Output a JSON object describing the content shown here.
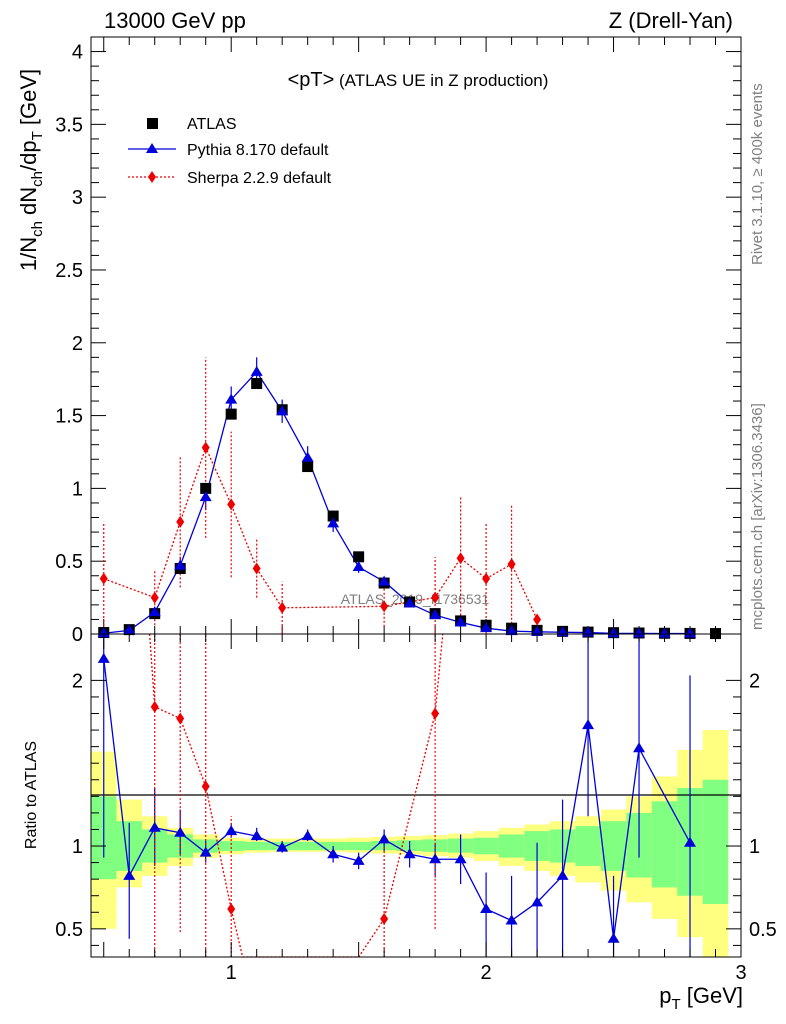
{
  "header": {
    "left": "13000 GeV pp",
    "right": "Z (Drell-Yan)"
  },
  "side_labels": {
    "rivet": "Rivet 3.1.10, ≥ 400k events",
    "mcplots": "mcplots.cern.ch [arXiv:1306.3436]"
  },
  "chart_data": [
    {
      "panel": "main",
      "type": "scatter",
      "title": "<pT> (ATLAS UE in Z production)",
      "title_main": "<pT>",
      "title_sub": " (ATLAS UE in Z production)",
      "watermark": "ATLAS_2019_I1736531",
      "xlabel": "p_T [GeV]",
      "ylabel": "1/N_ch dN_ch/dp_T [GeV]",
      "xlim": [
        0.45,
        3.0
      ],
      "ylim": [
        0,
        4.1
      ],
      "yticks": [
        0,
        0.5,
        1,
        1.5,
        2,
        2.5,
        3,
        3.5,
        4
      ],
      "ytick_labels": [
        "0",
        "0.5",
        "1",
        "1.5",
        "2",
        "2.5",
        "3",
        "3.5",
        "4"
      ],
      "legend_position": "top-left",
      "series": [
        {
          "name": "ATLAS",
          "marker": "square",
          "color": "#000000",
          "x": [
            0.5,
            0.6,
            0.7,
            0.8,
            0.9,
            1.0,
            1.1,
            1.2,
            1.3,
            1.4,
            1.5,
            1.6,
            1.7,
            1.8,
            1.9,
            2.0,
            2.1,
            2.2,
            2.3,
            2.4,
            2.5,
            2.6,
            2.7,
            2.8,
            2.9
          ],
          "y": [
            0.01,
            0.03,
            0.14,
            0.45,
            1.0,
            1.51,
            1.72,
            1.54,
            1.15,
            0.81,
            0.53,
            0.35,
            0.22,
            0.14,
            0.09,
            0.06,
            0.04,
            0.025,
            0.018,
            0.013,
            0.009,
            0.007,
            0.005,
            0.004,
            0.003
          ]
        },
        {
          "name": "Pythia 8.170 default",
          "marker": "triangle",
          "line": "solid",
          "color": "#0000dd",
          "x": [
            0.5,
            0.6,
            0.7,
            0.8,
            0.9,
            1.0,
            1.1,
            1.2,
            1.3,
            1.4,
            1.5,
            1.6,
            1.7,
            1.8,
            1.9,
            2.0,
            2.1,
            2.2,
            2.3,
            2.4,
            2.5,
            2.6,
            2.7,
            2.8
          ],
          "y": [
            0.005,
            0.025,
            0.15,
            0.47,
            0.94,
            1.61,
            1.8,
            1.53,
            1.21,
            0.76,
            0.46,
            0.36,
            0.21,
            0.13,
            0.08,
            0.04,
            0.02,
            0.015,
            0.012,
            0.01,
            0.004,
            0.004,
            0.003,
            0.003
          ],
          "yerr": [
            0.003,
            0.008,
            0.03,
            0.06,
            0.09,
            0.09,
            0.1,
            0.08,
            0.08,
            0.06,
            0.04,
            0.03,
            0.02,
            0.015,
            0.01,
            0.008,
            0.006,
            0.005,
            0.004,
            0.004,
            0.003,
            0.003,
            0.003,
            0.003
          ]
        },
        {
          "name": "Sherpa 2.2.9 default",
          "marker": "diamond",
          "line": "dotted",
          "color": "#ee0000",
          "x": [
            0.5,
            0.7,
            0.8,
            0.9,
            1.0,
            1.1,
            1.2,
            1.6,
            1.8,
            1.9,
            2.0,
            2.1,
            2.2
          ],
          "y": [
            0.38,
            0.25,
            0.77,
            1.28,
            0.89,
            0.45,
            0.18,
            0.19,
            0.25,
            0.52,
            0.38,
            0.48,
            0.1
          ],
          "yerr": [
            0.39,
            0.19,
            0.45,
            0.62,
            0.5,
            0.2,
            0.18,
            0.14,
            0.28,
            0.42,
            0.38,
            0.41,
            0.04
          ]
        }
      ]
    },
    {
      "panel": "ratio",
      "type": "scatter",
      "ylabel": "Ratio to ATLAS",
      "xlabel": "p_T [GeV]",
      "xlim": [
        0.45,
        3.0
      ],
      "ylim": [
        0.33,
        2.28
      ],
      "yticks": [
        0.5,
        1,
        2
      ],
      "ytick_labels": [
        "0.5",
        "1",
        "2"
      ],
      "xticks": [
        1,
        2,
        3
      ],
      "xtick_labels": [
        "1",
        "2",
        "3"
      ],
      "reference_line": 1,
      "bands": {
        "edges": [
          0.45,
          0.55,
          0.65,
          0.75,
          0.85,
          0.95,
          1.05,
          1.15,
          1.25,
          1.35,
          1.45,
          1.55,
          1.65,
          1.75,
          1.85,
          1.95,
          2.05,
          2.15,
          2.25,
          2.35,
          2.45,
          2.55,
          2.65,
          2.75,
          2.85,
          2.95
        ],
        "outer_color": "#ffff80",
        "inner_color": "#80ff80",
        "outer_lo": [
          0.5,
          0.75,
          0.82,
          0.88,
          0.93,
          0.95,
          0.96,
          0.965,
          0.965,
          0.965,
          0.96,
          0.955,
          0.95,
          0.94,
          0.93,
          0.91,
          0.88,
          0.85,
          0.82,
          0.78,
          0.73,
          0.66,
          0.56,
          0.45,
          0.33
        ],
        "outer_hi": [
          1.57,
          1.28,
          1.18,
          1.11,
          1.07,
          1.05,
          1.045,
          1.045,
          1.045,
          1.045,
          1.05,
          1.055,
          1.06,
          1.065,
          1.075,
          1.09,
          1.11,
          1.13,
          1.15,
          1.18,
          1.22,
          1.3,
          1.42,
          1.58,
          1.7
        ],
        "inner_lo": [
          0.8,
          0.85,
          0.9,
          0.93,
          0.96,
          0.97,
          0.975,
          0.975,
          0.975,
          0.975,
          0.975,
          0.975,
          0.97,
          0.965,
          0.96,
          0.95,
          0.93,
          0.91,
          0.9,
          0.88,
          0.85,
          0.81,
          0.75,
          0.7,
          0.65
        ],
        "inner_hi": [
          1.3,
          1.15,
          1.1,
          1.07,
          1.04,
          1.03,
          1.025,
          1.025,
          1.025,
          1.025,
          1.025,
          1.03,
          1.035,
          1.04,
          1.045,
          1.05,
          1.07,
          1.09,
          1.1,
          1.12,
          1.15,
          1.2,
          1.27,
          1.35,
          1.4
        ]
      },
      "series": [
        {
          "name": "Pythia 8.170 default",
          "color": "#0000dd",
          "x": [
            0.5,
            0.6,
            0.7,
            0.8,
            0.9,
            1.0,
            1.1,
            1.2,
            1.3,
            1.4,
            1.5,
            1.6,
            1.7,
            1.8,
            1.9,
            2.0,
            2.1,
            2.2,
            2.3,
            2.4,
            2.5,
            2.6,
            2.8
          ],
          "y": [
            2.13,
            0.82,
            1.11,
            1.08,
            0.96,
            1.09,
            1.06,
            0.99,
            1.06,
            0.95,
            0.91,
            1.04,
            0.95,
            0.92,
            0.92,
            0.62,
            0.55,
            0.66,
            0.82,
            1.73,
            0.44,
            1.59,
            1.02
          ],
          "ylo": [
            0.93,
            0.44,
            0.88,
            0.95,
            0.9,
            1.05,
            1.03,
            0.96,
            1.03,
            0.9,
            0.86,
            0.97,
            0.87,
            0.81,
            0.77,
            0.28,
            0.26,
            0.28,
            0.33,
            1.18,
            0.33,
            0.93,
            0.33
          ],
          "yhi": [
            2.28,
            1.14,
            1.35,
            1.22,
            1.03,
            1.14,
            1.11,
            1.03,
            1.1,
            1.0,
            0.96,
            1.1,
            1.03,
            1.02,
            1.07,
            0.84,
            0.82,
            1.02,
            1.28,
            2.28,
            0.82,
            2.28,
            2.03
          ]
        },
        {
          "name": "Sherpa 2.2.9 default",
          "color": "#ee0000",
          "x": [
            0.7,
            0.8,
            0.9,
            1.0,
            1.6,
            1.8
          ],
          "y": [
            1.84,
            1.77,
            1.36,
            0.62,
            0.56,
            1.8
          ],
          "ylo": [
            0.33,
            0.48,
            0.33,
            0.33,
            0.33,
            0.5
          ],
          "yhi": [
            2.28,
            2.28,
            2.28,
            1.18,
            1.0,
            2.28
          ],
          "line_x": [
            0.68,
            0.7,
            0.8,
            0.9,
            1.0,
            1.045,
            1.5,
            1.6,
            1.8,
            1.83
          ],
          "line_y": [
            2.28,
            1.84,
            1.77,
            1.36,
            0.62,
            0.33,
            0.33,
            0.56,
            1.8,
            2.28
          ]
        }
      ]
    }
  ]
}
